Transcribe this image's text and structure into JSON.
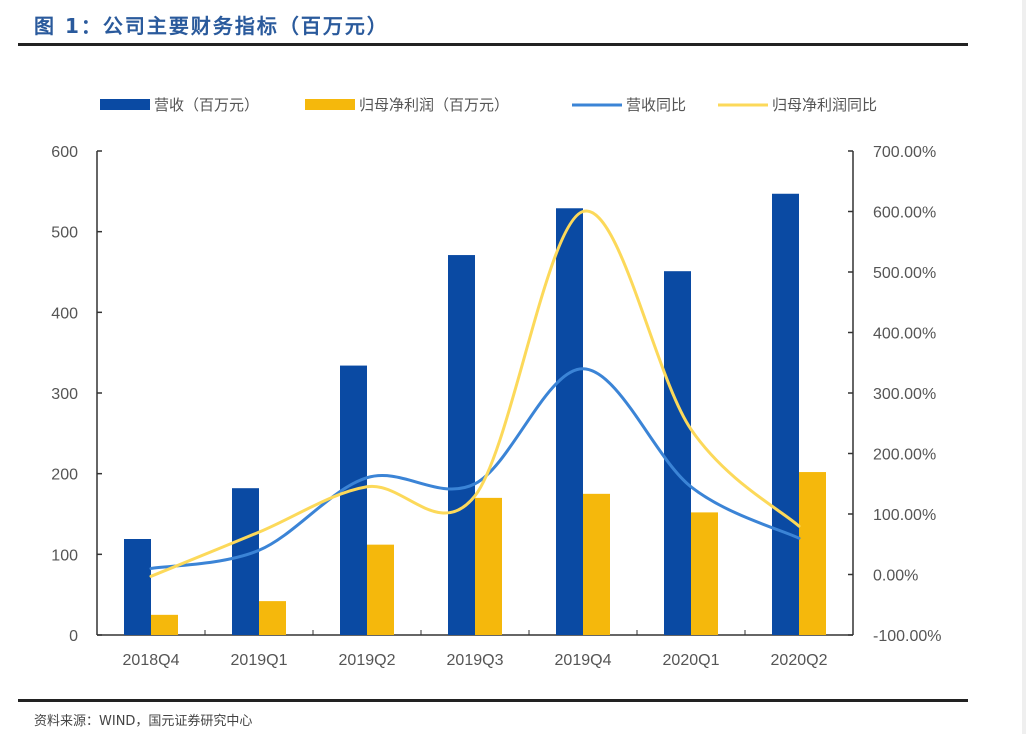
{
  "header": {
    "title": "图 1：公司主要财务指标（百万元）"
  },
  "footer": {
    "source": "资料来源：WIND，国元证券研究中心"
  },
  "colors": {
    "revenue_bar": "#0a4aa3",
    "profit_bar": "#f5b80c",
    "revenue_yoy_line": "#3b84d6",
    "profit_yoy_line": "#fcd95a",
    "title": "#2a5a9c"
  },
  "chart_data": {
    "type": "bar",
    "title": "公司主要财务指标（百万元）",
    "categories": [
      "2018Q4",
      "2019Q1",
      "2019Q2",
      "2019Q3",
      "2019Q4",
      "2020Q1",
      "2020Q2"
    ],
    "series": [
      {
        "name": "营收（百万元）",
        "type": "bar",
        "axis": "left",
        "values": [
          119,
          182,
          334,
          471,
          529,
          451,
          547
        ]
      },
      {
        "name": "归母净利润（百万元）",
        "type": "bar",
        "axis": "left",
        "values": [
          25,
          42,
          112,
          170,
          175,
          152,
          202
        ]
      },
      {
        "name": "营收同比",
        "type": "line",
        "axis": "right",
        "values": [
          10,
          40,
          160,
          150,
          340,
          145,
          60
        ]
      },
      {
        "name": "归母净利润同比",
        "type": "line",
        "axis": "right",
        "values": [
          -3,
          70,
          145,
          130,
          600,
          240,
          80
        ]
      }
    ],
    "left_axis": {
      "ylim": [
        0,
        600
      ],
      "ticks": [
        "0",
        "100",
        "200",
        "300",
        "400",
        "500",
        "600"
      ]
    },
    "right_axis": {
      "ylim": [
        -100,
        700
      ],
      "unit": "%",
      "ticks": [
        "-100.00%",
        "0.00%",
        "100.00%",
        "200.00%",
        "300.00%",
        "400.00%",
        "500.00%",
        "600.00%",
        "700.00%"
      ]
    },
    "xlabel": "",
    "ylabel": "",
    "grid": false,
    "legend_position": "top"
  }
}
